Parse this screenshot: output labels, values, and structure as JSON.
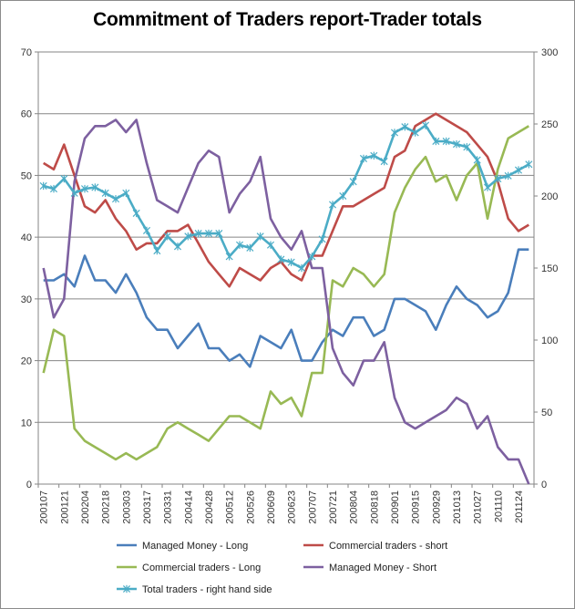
{
  "chart_data": {
    "type": "line",
    "title": "Commitment of Traders report-Trader totals",
    "xlabel": "",
    "ylabel_left": "",
    "ylabel_right": "",
    "ylim_left": [
      0,
      70
    ],
    "ylim_right": [
      0,
      300
    ],
    "left_ticks": [
      "0",
      "10",
      "20",
      "30",
      "40",
      "50",
      "60",
      "70"
    ],
    "right_ticks": [
      "0",
      "50",
      "100",
      "150",
      "200",
      "250",
      "300"
    ],
    "x_tick_labels": [
      "200107",
      "200121",
      "200204",
      "200218",
      "200303",
      "200317",
      "200331",
      "200414",
      "200428",
      "200512",
      "200526",
      "200609",
      "200623",
      "200707",
      "200721",
      "200804",
      "200818",
      "200901",
      "200915",
      "200929",
      "201013",
      "201027",
      "201110",
      "201124"
    ],
    "num_points": 48,
    "series": [
      {
        "name": "Managed Money - Long",
        "color": "#4a7ebb",
        "axis": "left",
        "values": [
          33,
          33,
          34,
          32,
          37,
          33,
          33,
          31,
          34,
          31,
          27,
          25,
          25,
          22,
          24,
          26,
          22,
          22,
          20,
          21,
          19,
          24,
          23,
          22,
          25,
          20,
          20,
          23,
          25,
          24,
          27,
          27,
          24,
          25,
          30,
          30,
          29,
          28,
          25,
          29,
          32,
          30,
          29,
          27,
          28,
          31,
          38,
          38
        ]
      },
      {
        "name": "Commercial traders - short",
        "color": "#be4b48",
        "axis": "left",
        "values": [
          52,
          51,
          55,
          50,
          45,
          44,
          46,
          43,
          41,
          38,
          39,
          39,
          41,
          41,
          42,
          39,
          36,
          34,
          32,
          35,
          34,
          33,
          35,
          36,
          34,
          33,
          37,
          37,
          41,
          45,
          45,
          46,
          47,
          48,
          53,
          54,
          58,
          59,
          60,
          59,
          58,
          57,
          55,
          53,
          49,
          43,
          41,
          42
        ]
      },
      {
        "name": "Commercial traders - Long",
        "color": "#98b954",
        "axis": "left",
        "values": [
          18,
          25,
          24,
          9,
          7,
          6,
          5,
          4,
          5,
          4,
          5,
          6,
          9,
          10,
          9,
          8,
          7,
          9,
          11,
          11,
          10,
          9,
          15,
          13,
          14,
          11,
          18,
          18,
          33,
          32,
          35,
          34,
          32,
          34,
          44,
          48,
          51,
          53,
          49,
          50,
          46,
          50,
          52,
          43,
          51,
          56,
          57,
          58
        ]
      },
      {
        "name": "Managed Money - Short",
        "color": "#7d60a0",
        "axis": "left",
        "values": [
          35,
          27,
          30,
          49,
          56,
          58,
          58,
          59,
          57,
          59,
          52,
          46,
          45,
          44,
          48,
          52,
          54,
          53,
          44,
          47,
          49,
          53,
          43,
          40,
          38,
          41,
          35,
          35,
          22,
          18,
          16,
          20,
          20,
          23,
          14,
          10,
          9,
          10,
          11,
          12,
          14,
          13,
          9,
          11,
          6,
          4,
          4,
          0
        ]
      },
      {
        "name": "Total traders - right hand side",
        "color": "#4bacc6",
        "axis": "right",
        "values": [
          207,
          205,
          212,
          202,
          205,
          206,
          202,
          198,
          202,
          188,
          176,
          162,
          172,
          165,
          172,
          174,
          174,
          174,
          158,
          166,
          164,
          172,
          166,
          156,
          154,
          150,
          158,
          170,
          194,
          200,
          210,
          226,
          228,
          224,
          244,
          248,
          244,
          249,
          238,
          238,
          236,
          234,
          225,
          206,
          212,
          214,
          218,
          222
        ]
      }
    ],
    "legend": [
      {
        "label": "Managed Money - Long",
        "color": "#4a7ebb"
      },
      {
        "label": "Commercial traders - short",
        "color": "#be4b48"
      },
      {
        "label": "Commercial traders - Long",
        "color": "#98b954"
      },
      {
        "label": "Managed Money - Short",
        "color": "#7d60a0"
      },
      {
        "label": "Total traders - right hand side",
        "color": "#4bacc6"
      }
    ]
  }
}
